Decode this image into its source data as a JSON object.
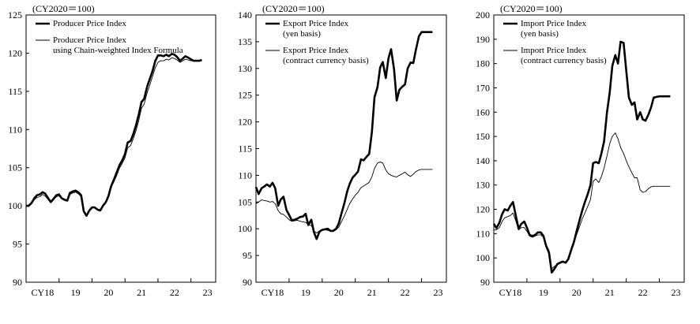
{
  "chart_data": [
    {
      "type": "line",
      "unit_label": "(CY2020＝100)",
      "ylim": [
        90,
        125
      ],
      "yticks": [
        90,
        95,
        100,
        105,
        110,
        115,
        120,
        125
      ],
      "xlim": [
        2018,
        2023.75
      ],
      "xticks": [
        {
          "v": 2018.5,
          "label": "CY18"
        },
        {
          "v": 2019.5,
          "label": "19"
        },
        {
          "v": 2020.5,
          "label": "20"
        },
        {
          "v": 2021.5,
          "label": "21"
        },
        {
          "v": 2022.5,
          "label": "22"
        },
        {
          "v": 2023.5,
          "label": "23"
        }
      ],
      "legend": [
        {
          "lines": [
            "Producer Price Index"
          ],
          "bold": true
        },
        {
          "lines": [
            "Producer Price Index",
            "using Chain-weighted Index Formula"
          ],
          "bold": false
        }
      ],
      "series": [
        {
          "name": "Producer Price Index",
          "bold": true,
          "x": [
            2018.0,
            2018.08,
            2018.17,
            2018.25,
            2018.33,
            2018.42,
            2018.5,
            2018.58,
            2018.67,
            2018.75,
            2018.83,
            2018.92,
            2019.0,
            2019.08,
            2019.17,
            2019.25,
            2019.33,
            2019.42,
            2019.5,
            2019.58,
            2019.67,
            2019.75,
            2019.83,
            2019.92,
            2020.0,
            2020.08,
            2020.17,
            2020.25,
            2020.33,
            2020.42,
            2020.5,
            2020.58,
            2020.67,
            2020.75,
            2020.83,
            2020.92,
            2021.0,
            2021.08,
            2021.17,
            2021.25,
            2021.33,
            2021.42,
            2021.5,
            2021.58,
            2021.67,
            2021.75,
            2021.83,
            2021.92,
            2022.0,
            2022.08,
            2022.17,
            2022.25,
            2022.33,
            2022.42,
            2022.5,
            2022.58,
            2022.67,
            2022.75,
            2022.83,
            2022.92,
            2023.0,
            2023.08,
            2023.17,
            2023.25,
            2023.33
          ],
          "values": [
            100.0,
            100.0,
            100.4,
            101.0,
            101.4,
            101.5,
            101.8,
            101.6,
            101.0,
            100.5,
            100.9,
            101.4,
            101.5,
            101.0,
            100.8,
            100.7,
            101.7,
            101.9,
            102.0,
            101.8,
            101.4,
            99.3,
            98.7,
            99.4,
            99.8,
            99.8,
            99.5,
            99.4,
            100.0,
            100.5,
            101.3,
            102.6,
            103.5,
            104.4,
            105.3,
            106.0,
            106.8,
            108.3,
            108.5,
            109.4,
            110.5,
            112.0,
            113.6,
            114.0,
            115.6,
            116.6,
            117.6,
            119.0,
            119.7,
            119.7,
            119.6,
            119.8,
            119.6,
            119.9,
            119.8,
            119.5,
            119.0,
            119.3,
            119.6,
            119.4,
            119.2,
            119.0,
            119.0,
            119.0,
            119.1
          ]
        },
        {
          "name": "Producer Price Index using Chain-weighted Index Formula",
          "bold": false,
          "x": [
            2018.0,
            2018.08,
            2018.17,
            2018.25,
            2018.33,
            2018.42,
            2018.5,
            2018.58,
            2018.67,
            2018.75,
            2018.83,
            2018.92,
            2019.0,
            2019.08,
            2019.17,
            2019.25,
            2019.33,
            2019.42,
            2019.5,
            2019.58,
            2019.67,
            2019.75,
            2019.83,
            2019.92,
            2020.0,
            2020.08,
            2020.17,
            2020.25,
            2020.33,
            2020.42,
            2020.5,
            2020.58,
            2020.67,
            2020.75,
            2020.83,
            2020.92,
            2021.0,
            2021.08,
            2021.17,
            2021.25,
            2021.33,
            2021.42,
            2021.5,
            2021.58,
            2021.67,
            2021.75,
            2021.83,
            2021.92,
            2022.0,
            2022.08,
            2022.17,
            2022.25,
            2022.33,
            2022.42,
            2022.5,
            2022.58,
            2022.67,
            2022.75,
            2022.83,
            2022.92,
            2023.0,
            2023.08,
            2023.17,
            2023.25,
            2023.33
          ],
          "values": [
            100.0,
            99.9,
            100.3,
            100.8,
            101.1,
            101.2,
            101.5,
            101.3,
            100.8,
            100.4,
            100.8,
            101.2,
            101.3,
            100.9,
            100.7,
            100.6,
            101.5,
            101.7,
            101.8,
            101.6,
            101.2,
            99.3,
            98.8,
            99.4,
            99.8,
            99.8,
            99.5,
            99.4,
            99.9,
            100.4,
            101.1,
            102.4,
            103.2,
            104.0,
            104.9,
            105.6,
            106.3,
            107.6,
            107.9,
            108.8,
            109.8,
            111.2,
            112.8,
            113.3,
            114.8,
            115.8,
            116.9,
            118.1,
            118.8,
            119.0,
            119.0,
            119.2,
            119.1,
            119.4,
            119.3,
            119.1,
            118.8,
            119.0,
            119.2,
            119.1,
            119.0,
            119.0,
            119.0,
            119.0,
            119.0
          ]
        }
      ]
    },
    {
      "type": "line",
      "unit_label": "(CY2020＝100)",
      "ylim": [
        90,
        140
      ],
      "yticks": [
        90,
        95,
        100,
        105,
        110,
        115,
        120,
        125,
        130,
        135,
        140
      ],
      "xlim": [
        2018,
        2023.75
      ],
      "xticks": [
        {
          "v": 2018.5,
          "label": "CY18"
        },
        {
          "v": 2019.5,
          "label": "19"
        },
        {
          "v": 2020.5,
          "label": "20"
        },
        {
          "v": 2021.5,
          "label": "21"
        },
        {
          "v": 2022.5,
          "label": "22"
        },
        {
          "v": 2023.5,
          "label": "23"
        }
      ],
      "legend": [
        {
          "lines": [
            "Export Price Index",
            "(yen basis)"
          ],
          "bold": true
        },
        {
          "lines": [
            "Export Price Index",
            "(contract currency basis)"
          ],
          "bold": false
        }
      ],
      "series": [
        {
          "name": "Export Price Index (yen basis)",
          "bold": true,
          "x": [
            2018.0,
            2018.08,
            2018.17,
            2018.25,
            2018.33,
            2018.42,
            2018.5,
            2018.58,
            2018.67,
            2018.75,
            2018.83,
            2018.92,
            2019.0,
            2019.08,
            2019.17,
            2019.25,
            2019.33,
            2019.42,
            2019.5,
            2019.58,
            2019.67,
            2019.75,
            2019.83,
            2019.92,
            2020.0,
            2020.08,
            2020.17,
            2020.25,
            2020.33,
            2020.42,
            2020.5,
            2020.58,
            2020.67,
            2020.75,
            2020.83,
            2020.92,
            2021.0,
            2021.08,
            2021.17,
            2021.25,
            2021.33,
            2021.42,
            2021.5,
            2021.58,
            2021.67,
            2021.75,
            2021.83,
            2021.92,
            2022.0,
            2022.08,
            2022.17,
            2022.25,
            2022.33,
            2022.42,
            2022.5,
            2022.58,
            2022.67,
            2022.75,
            2022.83,
            2022.92,
            2023.0,
            2023.08,
            2023.17,
            2023.25,
            2023.33
          ],
          "values": [
            107.8,
            106.5,
            107.6,
            107.9,
            108.3,
            107.9,
            108.6,
            107.6,
            104.3,
            105.5,
            106.0,
            103.5,
            102.6,
            101.6,
            101.7,
            101.9,
            102.2,
            102.3,
            102.8,
            100.7,
            101.7,
            99.4,
            98.1,
            99.5,
            99.8,
            99.9,
            100.0,
            99.6,
            99.6,
            100.0,
            101.0,
            102.8,
            104.8,
            106.9,
            108.4,
            109.6,
            110.1,
            110.7,
            113.0,
            112.8,
            113.4,
            114.0,
            118.1,
            124.6,
            126.5,
            130.2,
            131.2,
            128.2,
            131.9,
            133.6,
            129.8,
            124.0,
            126.0,
            126.6,
            127.0,
            130.0,
            131.1,
            131.0,
            133.5,
            136.0,
            136.8,
            136.8,
            136.8,
            136.8,
            136.8
          ]
        },
        {
          "name": "Export Price Index (contract currency basis)",
          "bold": false,
          "x": [
            2018.0,
            2018.08,
            2018.17,
            2018.25,
            2018.33,
            2018.42,
            2018.5,
            2018.58,
            2018.67,
            2018.75,
            2018.83,
            2018.92,
            2019.0,
            2019.08,
            2019.17,
            2019.25,
            2019.33,
            2019.42,
            2019.5,
            2019.58,
            2019.67,
            2019.75,
            2019.83,
            2019.92,
            2020.0,
            2020.08,
            2020.17,
            2020.25,
            2020.33,
            2020.42,
            2020.5,
            2020.58,
            2020.67,
            2020.75,
            2020.83,
            2020.92,
            2021.0,
            2021.08,
            2021.17,
            2021.25,
            2021.33,
            2021.42,
            2021.5,
            2021.58,
            2021.67,
            2021.75,
            2021.83,
            2021.92,
            2022.0,
            2022.08,
            2022.17,
            2022.25,
            2022.33,
            2022.42,
            2022.5,
            2022.58,
            2022.67,
            2022.75,
            2022.83,
            2022.92,
            2023.0,
            2023.08,
            2023.17,
            2023.25,
            2023.33
          ],
          "values": [
            104.7,
            105.0,
            105.4,
            105.3,
            105.2,
            105.0,
            105.1,
            104.7,
            103.4,
            102.8,
            102.7,
            102.2,
            101.7,
            101.4,
            101.5,
            101.6,
            101.4,
            101.3,
            101.2,
            100.8,
            100.6,
            99.6,
            99.2,
            99.6,
            99.8,
            99.8,
            99.7,
            99.6,
            99.6,
            99.8,
            100.3,
            101.3,
            102.4,
            103.6,
            104.7,
            105.6,
            106.3,
            106.8,
            107.7,
            108.0,
            108.3,
            108.7,
            109.7,
            111.3,
            112.3,
            112.5,
            112.3,
            111.0,
            110.3,
            110.0,
            109.8,
            109.7,
            110.0,
            110.3,
            110.6,
            110.1,
            109.8,
            110.2,
            110.7,
            111.0,
            111.1,
            111.1,
            111.1,
            111.1,
            111.1
          ]
        }
      ]
    },
    {
      "type": "line",
      "unit_label": "(CY2020＝100)",
      "ylim": [
        90,
        200
      ],
      "yticks": [
        90,
        100,
        110,
        120,
        130,
        140,
        150,
        160,
        170,
        180,
        190,
        200
      ],
      "xlim": [
        2018,
        2023.75
      ],
      "xticks": [
        {
          "v": 2018.5,
          "label": "CY18"
        },
        {
          "v": 2019.5,
          "label": "19"
        },
        {
          "v": 2020.5,
          "label": "20"
        },
        {
          "v": 2021.5,
          "label": "21"
        },
        {
          "v": 2022.5,
          "label": "22"
        },
        {
          "v": 2023.5,
          "label": "23"
        }
      ],
      "legend": [
        {
          "lines": [
            "Import Price Index",
            "(yen basis)"
          ],
          "bold": true
        },
        {
          "lines": [
            "Import Price Index",
            "(contract currency basis)"
          ],
          "bold": false
        }
      ],
      "series": [
        {
          "name": "Import Price Index (yen basis)",
          "bold": true,
          "x": [
            2018.0,
            2018.08,
            2018.17,
            2018.25,
            2018.33,
            2018.42,
            2018.5,
            2018.58,
            2018.67,
            2018.75,
            2018.83,
            2018.92,
            2019.0,
            2019.08,
            2019.17,
            2019.25,
            2019.33,
            2019.42,
            2019.5,
            2019.58,
            2019.67,
            2019.75,
            2019.83,
            2019.92,
            2020.0,
            2020.08,
            2020.17,
            2020.25,
            2020.33,
            2020.42,
            2020.5,
            2020.58,
            2020.67,
            2020.75,
            2020.83,
            2020.92,
            2021.0,
            2021.08,
            2021.17,
            2021.25,
            2021.33,
            2021.42,
            2021.5,
            2021.58,
            2021.67,
            2021.75,
            2021.83,
            2021.92,
            2022.0,
            2022.08,
            2022.17,
            2022.25,
            2022.33,
            2022.42,
            2022.5,
            2022.58,
            2022.67,
            2022.75,
            2022.83,
            2022.92,
            2023.0,
            2023.08,
            2023.17,
            2023.25,
            2023.33
          ],
          "values": [
            114.0,
            112.3,
            114.5,
            118.0,
            120.0,
            119.5,
            121.5,
            123.0,
            117.0,
            112.0,
            114.0,
            115.0,
            112.5,
            109.5,
            109.0,
            109.5,
            110.5,
            110.5,
            109.0,
            105.0,
            102.0,
            94.0,
            95.5,
            97.5,
            98.0,
            98.5,
            98.0,
            99.5,
            103.0,
            106.5,
            111.0,
            115.0,
            119.5,
            123.0,
            126.0,
            130.0,
            139.0,
            139.5,
            139.0,
            143.0,
            148.0,
            160.0,
            168.0,
            179.0,
            183.5,
            180.0,
            189.0,
            188.5,
            177.0,
            166.0,
            163.0,
            164.0,
            157.0,
            160.0,
            157.0,
            156.5,
            159.0,
            162.0,
            166.0,
            166.3,
            166.5,
            166.5,
            166.5,
            166.5,
            166.5
          ]
        },
        {
          "name": "Import Price Index (contract currency basis)",
          "bold": false,
          "x": [
            2018.0,
            2018.08,
            2018.17,
            2018.25,
            2018.33,
            2018.42,
            2018.5,
            2018.58,
            2018.67,
            2018.75,
            2018.83,
            2018.92,
            2019.0,
            2019.08,
            2019.17,
            2019.25,
            2019.33,
            2019.42,
            2019.5,
            2019.58,
            2019.67,
            2019.75,
            2019.83,
            2019.92,
            2020.0,
            2020.08,
            2020.17,
            2020.25,
            2020.33,
            2020.42,
            2020.5,
            2020.58,
            2020.67,
            2020.75,
            2020.83,
            2020.92,
            2021.0,
            2021.08,
            2021.17,
            2021.25,
            2021.33,
            2021.42,
            2021.5,
            2021.58,
            2021.67,
            2021.75,
            2021.83,
            2021.92,
            2022.0,
            2022.08,
            2022.17,
            2022.25,
            2022.33,
            2022.42,
            2022.5,
            2022.58,
            2022.67,
            2022.75,
            2022.83,
            2022.92,
            2023.0,
            2023.08,
            2023.17,
            2023.25,
            2023.33
          ],
          "values": [
            111.5,
            111.5,
            112.5,
            115.0,
            116.5,
            117.0,
            117.5,
            118.5,
            115.0,
            111.5,
            112.5,
            112.5,
            111.0,
            109.0,
            108.5,
            109.0,
            109.5,
            109.5,
            108.5,
            105.5,
            103.0,
            95.5,
            96.5,
            97.5,
            98.0,
            98.5,
            98.5,
            99.5,
            102.5,
            106.0,
            109.5,
            112.5,
            116.0,
            118.5,
            121.0,
            124.0,
            131.5,
            132.5,
            131.0,
            133.5,
            137.0,
            142.0,
            147.0,
            150.0,
            151.5,
            149.0,
            145.5,
            143.0,
            140.0,
            137.5,
            135.0,
            133.0,
            133.0,
            128.0,
            127.0,
            127.3,
            128.5,
            129.3,
            129.5,
            129.5,
            129.5,
            129.5,
            129.5,
            129.5,
            129.5
          ]
        }
      ]
    }
  ]
}
